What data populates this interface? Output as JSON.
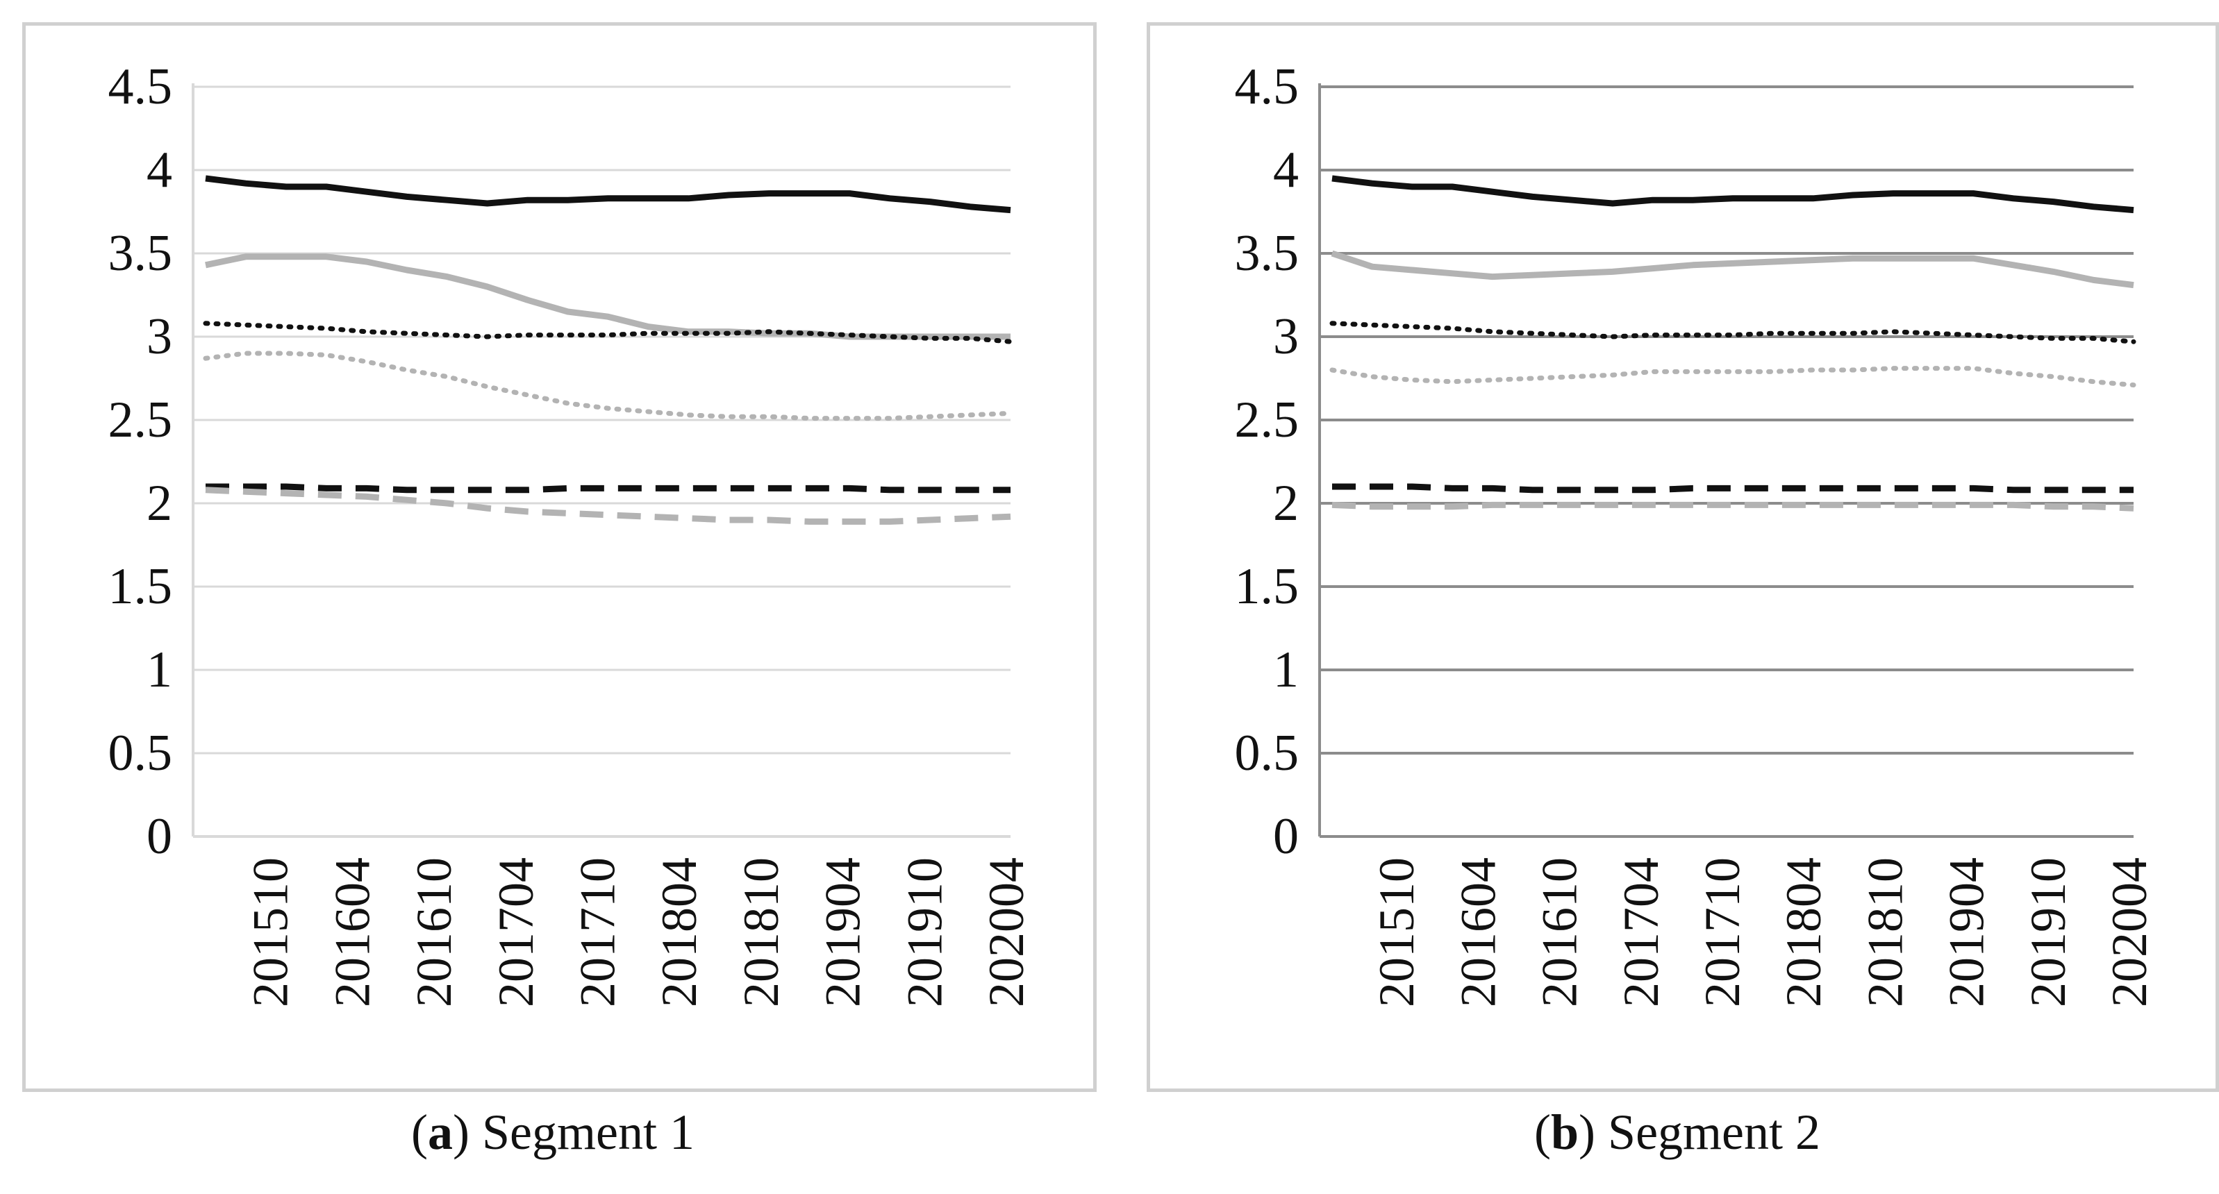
{
  "style": {
    "black": "#111111",
    "grey": "#b3b3b3",
    "grid_light": "#d9d9d9",
    "grid_dark": "#8c8c8c"
  },
  "captions": [
    {
      "letter": "a",
      "open": "(",
      "close": ")",
      "text": " Segment 1"
    },
    {
      "letter": "b",
      "open": "(",
      "close": ")",
      "text": " Segment 2"
    }
  ],
  "chart_data": [
    {
      "type": "line",
      "title": "(a) Segment 1",
      "x_tick_labels": [
        "201510",
        "201604",
        "201610",
        "201704",
        "201710",
        "201804",
        "201810",
        "201904",
        "201910",
        "202004"
      ],
      "ylim": [
        0,
        4.5
      ],
      "y_ticks": [
        "0",
        "0.5",
        "1",
        "1.5",
        "2",
        "2.5",
        "3",
        "3.5",
        "4",
        "4.5"
      ],
      "grid": "horizontal, light",
      "x": [
        0,
        0.05,
        0.1,
        0.15,
        0.2,
        0.25,
        0.3,
        0.35,
        0.4,
        0.45,
        0.5,
        0.55,
        0.6,
        0.65,
        0.7,
        0.75,
        0.8,
        0.85,
        0.9,
        0.95,
        1
      ],
      "series": [
        {
          "name": "black solid",
          "color": "black",
          "dash": "solid",
          "values": [
            3.95,
            3.92,
            3.9,
            3.9,
            3.87,
            3.84,
            3.82,
            3.8,
            3.82,
            3.82,
            3.83,
            3.83,
            3.83,
            3.85,
            3.86,
            3.86,
            3.86,
            3.83,
            3.81,
            3.78,
            3.76
          ]
        },
        {
          "name": "grey solid",
          "color": "grey",
          "dash": "solid",
          "values": [
            3.43,
            3.48,
            3.48,
            3.48,
            3.45,
            3.4,
            3.36,
            3.3,
            3.22,
            3.15,
            3.12,
            3.06,
            3.03,
            3.03,
            3.02,
            3.02,
            3.0,
            3.0,
            3.0,
            3.0,
            3.0
          ]
        },
        {
          "name": "black dotted",
          "color": "black",
          "dash": "dotted",
          "values": [
            3.08,
            3.07,
            3.06,
            3.05,
            3.03,
            3.02,
            3.01,
            3.0,
            3.01,
            3.01,
            3.01,
            3.02,
            3.02,
            3.02,
            3.03,
            3.02,
            3.01,
            3.0,
            2.99,
            2.99,
            2.97
          ]
        },
        {
          "name": "grey dotted",
          "color": "grey",
          "dash": "dotted",
          "values": [
            2.87,
            2.9,
            2.9,
            2.89,
            2.85,
            2.8,
            2.76,
            2.7,
            2.65,
            2.6,
            2.57,
            2.55,
            2.53,
            2.52,
            2.52,
            2.51,
            2.51,
            2.51,
            2.52,
            2.53,
            2.54
          ]
        },
        {
          "name": "black dashed",
          "color": "black",
          "dash": "dashed",
          "values": [
            2.1,
            2.1,
            2.1,
            2.09,
            2.09,
            2.08,
            2.08,
            2.08,
            2.08,
            2.09,
            2.09,
            2.09,
            2.09,
            2.09,
            2.09,
            2.09,
            2.09,
            2.08,
            2.08,
            2.08,
            2.08
          ]
        },
        {
          "name": "grey dashed",
          "color": "grey",
          "dash": "dashed",
          "values": [
            2.08,
            2.07,
            2.06,
            2.05,
            2.04,
            2.02,
            2.0,
            1.97,
            1.95,
            1.94,
            1.93,
            1.92,
            1.91,
            1.9,
            1.9,
            1.89,
            1.89,
            1.89,
            1.9,
            1.91,
            1.92
          ]
        }
      ]
    },
    {
      "type": "line",
      "title": "(b) Segment 2",
      "x_tick_labels": [
        "201510",
        "201604",
        "201610",
        "201704",
        "201710",
        "201804",
        "201810",
        "201904",
        "201910",
        "202004"
      ],
      "ylim": [
        0,
        4.5
      ],
      "y_ticks": [
        "0",
        "0.5",
        "1",
        "1.5",
        "2",
        "2.5",
        "3",
        "3.5",
        "4",
        "4.5"
      ],
      "grid": "horizontal, dark",
      "x": [
        0,
        0.05,
        0.1,
        0.15,
        0.2,
        0.25,
        0.3,
        0.35,
        0.4,
        0.45,
        0.5,
        0.55,
        0.6,
        0.65,
        0.7,
        0.75,
        0.8,
        0.85,
        0.9,
        0.95,
        1
      ],
      "series": [
        {
          "name": "black solid",
          "color": "black",
          "dash": "solid",
          "values": [
            3.95,
            3.92,
            3.9,
            3.9,
            3.87,
            3.84,
            3.82,
            3.8,
            3.82,
            3.82,
            3.83,
            3.83,
            3.83,
            3.85,
            3.86,
            3.86,
            3.86,
            3.83,
            3.81,
            3.78,
            3.76
          ]
        },
        {
          "name": "grey solid",
          "color": "grey",
          "dash": "solid",
          "values": [
            3.5,
            3.42,
            3.4,
            3.38,
            3.36,
            3.37,
            3.38,
            3.39,
            3.41,
            3.43,
            3.44,
            3.45,
            3.46,
            3.47,
            3.47,
            3.47,
            3.47,
            3.43,
            3.39,
            3.34,
            3.31
          ]
        },
        {
          "name": "black dotted",
          "color": "black",
          "dash": "dotted",
          "values": [
            3.08,
            3.07,
            3.06,
            3.05,
            3.03,
            3.02,
            3.01,
            3.0,
            3.01,
            3.01,
            3.01,
            3.02,
            3.02,
            3.02,
            3.03,
            3.02,
            3.01,
            3.0,
            2.99,
            2.99,
            2.97
          ]
        },
        {
          "name": "grey dotted",
          "color": "grey",
          "dash": "dotted",
          "values": [
            2.8,
            2.76,
            2.74,
            2.73,
            2.74,
            2.75,
            2.76,
            2.77,
            2.79,
            2.79,
            2.79,
            2.79,
            2.8,
            2.8,
            2.81,
            2.81,
            2.81,
            2.78,
            2.76,
            2.73,
            2.71
          ]
        },
        {
          "name": "black dashed",
          "color": "black",
          "dash": "dashed",
          "values": [
            2.1,
            2.1,
            2.1,
            2.09,
            2.09,
            2.08,
            2.08,
            2.08,
            2.08,
            2.09,
            2.09,
            2.09,
            2.09,
            2.09,
            2.09,
            2.09,
            2.09,
            2.08,
            2.08,
            2.08,
            2.08
          ]
        },
        {
          "name": "grey dashed",
          "color": "grey",
          "dash": "dashed",
          "values": [
            1.99,
            1.98,
            1.98,
            1.98,
            1.99,
            1.99,
            1.99,
            1.99,
            1.99,
            1.99,
            1.99,
            1.99,
            1.99,
            1.99,
            1.99,
            1.99,
            1.99,
            1.99,
            1.98,
            1.98,
            1.97
          ]
        }
      ]
    }
  ]
}
